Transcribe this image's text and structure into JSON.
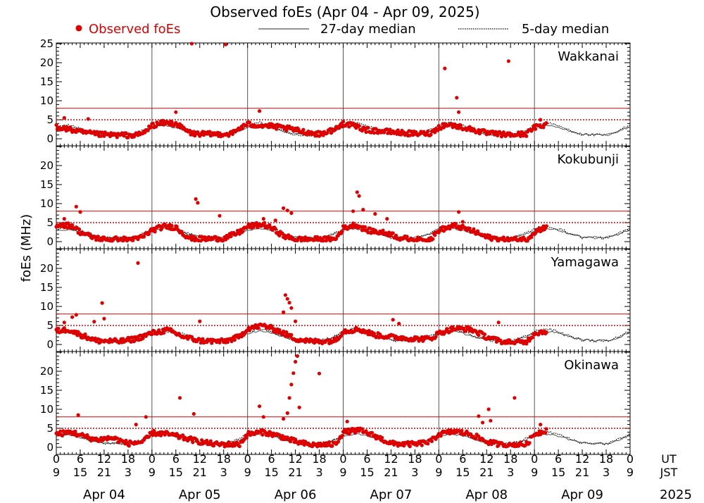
{
  "chart_data": {
    "type": "scatter",
    "title": "Observed foEs (Apr 04 - Apr 09, 2025)",
    "ylabel": "foEs (MHz)",
    "legend": {
      "placement": "top",
      "entries": [
        {
          "label": "Observed foEs",
          "kind": "marker",
          "color": "#dd0000"
        },
        {
          "label": "27-day median",
          "kind": "solid-line",
          "color": "#555555"
        },
        {
          "label": "5-day median",
          "kind": "dotted-line",
          "color": "#000000"
        }
      ]
    },
    "ylim": [
      0,
      25
    ],
    "yticks": [
      0,
      5,
      10,
      15,
      20,
      25
    ],
    "xlim_hours": [
      0,
      144
    ],
    "x_tick_ut": [
      "0",
      "6",
      "12",
      "18",
      "0",
      "6",
      "12",
      "18",
      "0",
      "6",
      "12",
      "18",
      "0",
      "6",
      "12",
      "18",
      "0",
      "6",
      "12",
      "18",
      "0",
      "6",
      "12",
      "18",
      "0"
    ],
    "x_tick_jst": [
      "9",
      "15",
      "21",
      "3",
      "9",
      "15",
      "21",
      "3",
      "9",
      "15",
      "21",
      "3",
      "9",
      "15",
      "21",
      "3",
      "9",
      "15",
      "21",
      "3",
      "9",
      "15",
      "21",
      "3",
      "9"
    ],
    "ut_label": "UT",
    "jst_label": "JST",
    "year_label": "2025",
    "days": [
      "Apr 04",
      "Apr 05",
      "Apr 06",
      "Apr 07",
      "Apr 08",
      "Apr 09"
    ],
    "reference_lines": {
      "solid_red": 8,
      "dotted_red": 5,
      "color": "#dd0000"
    },
    "colors": {
      "observed": "#dd0000",
      "median27": "#555555",
      "median5": "#000000"
    },
    "observed_until_hour": 123,
    "panels": [
      {
        "station": "Wakkanai",
        "spikes": [
          [
            2,
            5.5
          ],
          [
            8,
            5.2
          ],
          [
            30,
            7
          ],
          [
            34,
            25
          ],
          [
            42.5,
            24.8
          ],
          [
            51,
            7.3
          ],
          [
            72,
            4.5
          ],
          [
            97.5,
            18.5
          ],
          [
            100.5,
            10.8
          ],
          [
            101,
            7
          ],
          [
            113.5,
            20.4
          ],
          [
            121.5,
            5
          ]
        ],
        "profile": [
          [
            0,
            3.2
          ],
          [
            3,
            2.5
          ],
          [
            7,
            1.6
          ],
          [
            10,
            1.2
          ],
          [
            14,
            1.0
          ],
          [
            20,
            0.9
          ],
          [
            22,
            1.6
          ],
          [
            24,
            3.5
          ],
          [
            27,
            4.2
          ],
          [
            30,
            4.0
          ],
          [
            32,
            2.5
          ],
          [
            34,
            1.4
          ],
          [
            38,
            1.2
          ],
          [
            44,
            1.3
          ],
          [
            46,
            2.8
          ],
          [
            48,
            3.8
          ],
          [
            54,
            3.3
          ],
          [
            58,
            2.7
          ],
          [
            62,
            1.9
          ],
          [
            66,
            1.2
          ],
          [
            70,
            2.5
          ],
          [
            72,
            4.0
          ],
          [
            74,
            3.6
          ],
          [
            78,
            2.3
          ],
          [
            84,
            1.8
          ],
          [
            90,
            1.3
          ],
          [
            94,
            1.5
          ],
          [
            96,
            3.0
          ],
          [
            98,
            3.8
          ],
          [
            102,
            3.0
          ],
          [
            108,
            1.5
          ],
          [
            114,
            1.0
          ],
          [
            118,
            1.3
          ],
          [
            120,
            3.0
          ],
          [
            123,
            3.8
          ]
        ]
      },
      {
        "station": "Kokubunji",
        "spikes": [
          [
            2,
            6
          ],
          [
            5,
            9.2
          ],
          [
            6,
            7.8
          ],
          [
            35,
            11.2
          ],
          [
            35.5,
            10.2
          ],
          [
            41,
            6.8
          ],
          [
            52,
            6
          ],
          [
            55,
            5.6
          ],
          [
            57,
            8.8
          ],
          [
            58,
            8.2
          ],
          [
            59,
            7.5
          ],
          [
            74.5,
            8
          ],
          [
            75.5,
            13
          ],
          [
            76,
            12
          ],
          [
            77,
            8.4
          ],
          [
            80,
            7.3
          ],
          [
            83,
            6
          ],
          [
            101,
            7.8
          ],
          [
            102,
            5.2
          ]
        ],
        "profile": [
          [
            0,
            4.5
          ],
          [
            4,
            4.2
          ],
          [
            6,
            2.5
          ],
          [
            9,
            1.2
          ],
          [
            12,
            0.6
          ],
          [
            20,
            0.6
          ],
          [
            22,
            1.5
          ],
          [
            24,
            3.0
          ],
          [
            27,
            4.0
          ],
          [
            30,
            3.8
          ],
          [
            32,
            2.0
          ],
          [
            34,
            0.7
          ],
          [
            42,
            0.8
          ],
          [
            46,
            2.5
          ],
          [
            48,
            4.0
          ],
          [
            52,
            4.5
          ],
          [
            55,
            3.0
          ],
          [
            57,
            1.5
          ],
          [
            60,
            0.6
          ],
          [
            70,
            0.6
          ],
          [
            72,
            3.5
          ],
          [
            75,
            4.5
          ],
          [
            78,
            3.0
          ],
          [
            84,
            2.0
          ],
          [
            86,
            1.0
          ],
          [
            90,
            0.5
          ],
          [
            94,
            0.6
          ],
          [
            96,
            3.0
          ],
          [
            100,
            4.2
          ],
          [
            104,
            3.0
          ],
          [
            108,
            1.2
          ],
          [
            112,
            0.5
          ],
          [
            118,
            0.6
          ],
          [
            120,
            2.5
          ],
          [
            123,
            4.0
          ]
        ]
      },
      {
        "station": "Yamagawa",
        "spikes": [
          [
            2,
            5.8
          ],
          [
            4,
            7.2
          ],
          [
            5,
            7.8
          ],
          [
            9.5,
            6
          ],
          [
            11.5,
            10.9
          ],
          [
            12,
            6.8
          ],
          [
            20.5,
            21.4
          ],
          [
            36,
            6.1
          ],
          [
            57,
            8.5
          ],
          [
            57.5,
            13
          ],
          [
            58,
            12
          ],
          [
            58.5,
            11
          ],
          [
            59,
            9.6
          ],
          [
            60,
            6.1
          ],
          [
            84.5,
            6.5
          ],
          [
            86,
            5.5
          ],
          [
            111,
            5.8
          ]
        ],
        "profile": [
          [
            0,
            3.5
          ],
          [
            3,
            4.0
          ],
          [
            5,
            3.0
          ],
          [
            8,
            1.8
          ],
          [
            10,
            1.0
          ],
          [
            16,
            0.8
          ],
          [
            20,
            1.5
          ],
          [
            24,
            3.0
          ],
          [
            28,
            3.8
          ],
          [
            32,
            2.0
          ],
          [
            36,
            1.0
          ],
          [
            42,
            0.8
          ],
          [
            46,
            2.0
          ],
          [
            48,
            4.2
          ],
          [
            52,
            5.0
          ],
          [
            56,
            3.5
          ],
          [
            60,
            1.5
          ],
          [
            64,
            0.8
          ],
          [
            70,
            1.0
          ],
          [
            72,
            3.5
          ],
          [
            76,
            4.0
          ],
          [
            80,
            2.5
          ],
          [
            84,
            2.0
          ],
          [
            90,
            1.5
          ],
          [
            94,
            1.5
          ],
          [
            96,
            3.0
          ],
          [
            100,
            4.2
          ],
          [
            104,
            4.0
          ],
          [
            108,
            2.0
          ],
          [
            112,
            0.6
          ],
          [
            118,
            0.6
          ],
          [
            120,
            3.0
          ],
          [
            123,
            3.5
          ]
        ]
      },
      {
        "station": "Okinawa",
        "spikes": [
          [
            5.5,
            8.5
          ],
          [
            20,
            6
          ],
          [
            22.5,
            8
          ],
          [
            31,
            13
          ],
          [
            34.5,
            8.8
          ],
          [
            51,
            10.8
          ],
          [
            52,
            8
          ],
          [
            57,
            7.5
          ],
          [
            58,
            9
          ],
          [
            58.5,
            13
          ],
          [
            59,
            16.5
          ],
          [
            59.5,
            19.5
          ],
          [
            60,
            22.5
          ],
          [
            60.5,
            24
          ],
          [
            61,
            10.5
          ],
          [
            66,
            19.4
          ],
          [
            73,
            6.8
          ],
          [
            106,
            8.2
          ],
          [
            107,
            6.5
          ],
          [
            108.5,
            10
          ],
          [
            109,
            7
          ],
          [
            115,
            13
          ],
          [
            121.5,
            6
          ]
        ],
        "profile": [
          [
            0,
            3.5
          ],
          [
            4,
            4.0
          ],
          [
            6,
            3.2
          ],
          [
            10,
            2.0
          ],
          [
            14,
            2.5
          ],
          [
            18,
            1.0
          ],
          [
            22,
            1.5
          ],
          [
            24,
            3.8
          ],
          [
            28,
            3.5
          ],
          [
            32,
            2.5
          ],
          [
            36,
            1.5
          ],
          [
            40,
            0.8
          ],
          [
            46,
            0.8
          ],
          [
            48,
            3.5
          ],
          [
            52,
            4.0
          ],
          [
            56,
            3.0
          ],
          [
            60,
            1.5
          ],
          [
            64,
            0.6
          ],
          [
            70,
            0.8
          ],
          [
            72,
            4.0
          ],
          [
            76,
            4.5
          ],
          [
            80,
            3.0
          ],
          [
            84,
            1.0
          ],
          [
            90,
            0.8
          ],
          [
            94,
            1.5
          ],
          [
            96,
            3.5
          ],
          [
            100,
            4.2
          ],
          [
            104,
            3.5
          ],
          [
            108,
            1.5
          ],
          [
            112,
            0.6
          ],
          [
            118,
            0.8
          ],
          [
            120,
            3.5
          ],
          [
            123,
            4.5
          ]
        ]
      }
    ],
    "median27_profile": [
      [
        0,
        3.0
      ],
      [
        3,
        3.2
      ],
      [
        6,
        2.6
      ],
      [
        9,
        1.8
      ],
      [
        12,
        1.2
      ],
      [
        18,
        1.0
      ],
      [
        21,
        1.6
      ],
      [
        24,
        3.0
      ],
      [
        27,
        3.5
      ],
      [
        30,
        3.0
      ],
      [
        33,
        2.0
      ],
      [
        36,
        1.2
      ],
      [
        42,
        1.0
      ],
      [
        45,
        1.6
      ],
      [
        48,
        3.0
      ],
      [
        51,
        3.5
      ],
      [
        54,
        3.0
      ],
      [
        57,
        2.0
      ],
      [
        60,
        1.2
      ],
      [
        66,
        1.0
      ],
      [
        69,
        1.6
      ],
      [
        72,
        3.0
      ],
      [
        75,
        3.5
      ],
      [
        78,
        3.0
      ],
      [
        81,
        2.0
      ],
      [
        84,
        1.2
      ],
      [
        90,
        1.0
      ],
      [
        93,
        1.6
      ],
      [
        96,
        3.0
      ],
      [
        99,
        3.5
      ],
      [
        102,
        3.0
      ],
      [
        105,
        2.0
      ],
      [
        108,
        1.2
      ],
      [
        114,
        1.0
      ],
      [
        117,
        1.6
      ],
      [
        120,
        3.0
      ],
      [
        123,
        3.5
      ],
      [
        126,
        3.0
      ],
      [
        129,
        2.0
      ],
      [
        132,
        1.2
      ],
      [
        138,
        1.0
      ],
      [
        141,
        1.8
      ],
      [
        144,
        3.2
      ]
    ],
    "median5_profile": [
      [
        0,
        3.4
      ],
      [
        3,
        3.6
      ],
      [
        6,
        2.8
      ],
      [
        9,
        1.6
      ],
      [
        12,
        1.0
      ],
      [
        18,
        0.9
      ],
      [
        21,
        1.8
      ],
      [
        24,
        3.4
      ],
      [
        27,
        4.2
      ],
      [
        30,
        3.4
      ],
      [
        33,
        2.2
      ],
      [
        36,
        1.1
      ],
      [
        42,
        0.9
      ],
      [
        45,
        1.8
      ],
      [
        48,
        3.4
      ],
      [
        51,
        4.2
      ],
      [
        54,
        3.4
      ],
      [
        57,
        2.2
      ],
      [
        60,
        1.1
      ],
      [
        66,
        0.9
      ],
      [
        69,
        1.8
      ],
      [
        72,
        3.4
      ],
      [
        75,
        4.2
      ],
      [
        78,
        3.4
      ],
      [
        81,
        2.2
      ],
      [
        84,
        1.1
      ],
      [
        90,
        0.9
      ],
      [
        93,
        1.8
      ],
      [
        96,
        3.4
      ],
      [
        99,
        4.2
      ],
      [
        102,
        3.4
      ],
      [
        105,
        2.2
      ],
      [
        108,
        1.1
      ],
      [
        114,
        0.9
      ],
      [
        117,
        1.8
      ],
      [
        120,
        3.4
      ],
      [
        123,
        4.2
      ],
      [
        126,
        3.4
      ],
      [
        129,
        2.2
      ],
      [
        132,
        1.1
      ],
      [
        138,
        0.9
      ],
      [
        141,
        2.0
      ],
      [
        144,
        3.6
      ]
    ]
  }
}
